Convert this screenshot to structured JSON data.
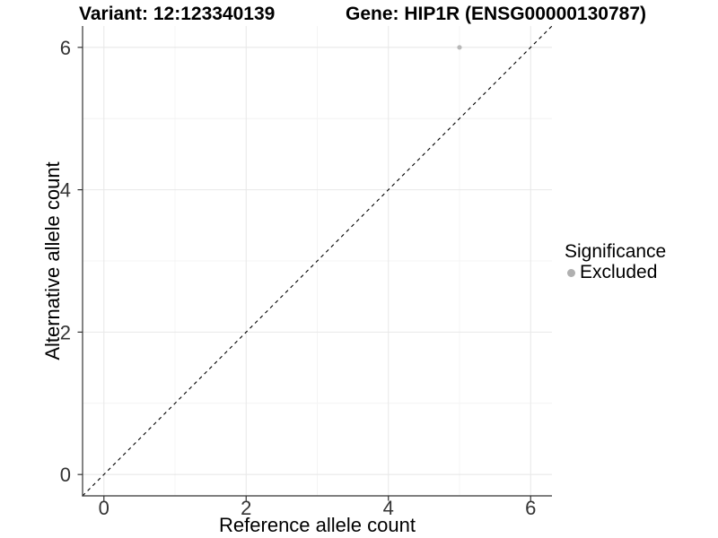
{
  "chart_data": {
    "type": "scatter",
    "titles": {
      "left": "Variant: 12:123340139",
      "right": "Gene: HIP1R (ENSG00000130787)"
    },
    "xlabel": "Reference allele count",
    "ylabel": "Alternative allele count",
    "xlim": [
      -0.3,
      6.3
    ],
    "ylim": [
      -0.3,
      6.3
    ],
    "x_major_ticks": [
      0,
      2,
      4,
      6
    ],
    "y_major_ticks": [
      0,
      2,
      4,
      6
    ],
    "x_minor_ticks": [
      1,
      3,
      5
    ],
    "y_minor_ticks": [
      1,
      3,
      5
    ],
    "grid": "major+minor",
    "diagonal_line": {
      "style": "dashed",
      "x1": -0.3,
      "y1": -0.3,
      "x2": 6.3,
      "y2": 6.3
    },
    "series": [
      {
        "name": "Excluded",
        "color": "#b8b8b8",
        "points": [
          {
            "x": 5,
            "y": 6
          }
        ]
      }
    ],
    "legend": {
      "title": "Significance",
      "position": "right",
      "items": [
        {
          "label": "Excluded",
          "color": "#b0b0b0"
        }
      ]
    },
    "colors": {
      "axis": "#333333",
      "grid_major": "#e8e8e8",
      "grid_minor": "#f4f4f4",
      "tick_text": "#333333",
      "title_text": "#000000",
      "diagonal": "#000000"
    }
  }
}
